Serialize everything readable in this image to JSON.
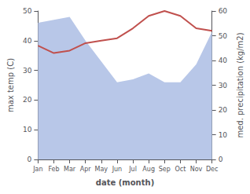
{
  "chart_data": {
    "type": "line",
    "categories": [
      "Jan",
      "Feb",
      "Mar",
      "Apr",
      "May",
      "Jun",
      "Jul",
      "Aug",
      "Sep",
      "Oct",
      "Nov",
      "Dec"
    ],
    "series": [
      {
        "type": "area",
        "color": "#b8c7e8",
        "values": [
          46,
          47,
          48,
          40,
          33,
          26,
          27,
          29,
          26,
          26,
          32,
          43
        ]
      },
      {
        "type": "line",
        "axis": "y2",
        "color": "#c0504d",
        "values": [
          46,
          43,
          44,
          47,
          48,
          49,
          53,
          58,
          60,
          58,
          53,
          52
        ]
      }
    ],
    "xlabel": "date (month)",
    "ylabel": "max temp (C)",
    "y2label": "med. precipitation (kg/m2)",
    "ylim": [
      0,
      50
    ],
    "yticks": [
      0,
      10,
      20,
      30,
      40,
      50
    ],
    "y2lim": [
      0,
      60
    ],
    "y2ticks": [
      0,
      10,
      20,
      30,
      40,
      50,
      60
    ],
    "grid": false
  }
}
